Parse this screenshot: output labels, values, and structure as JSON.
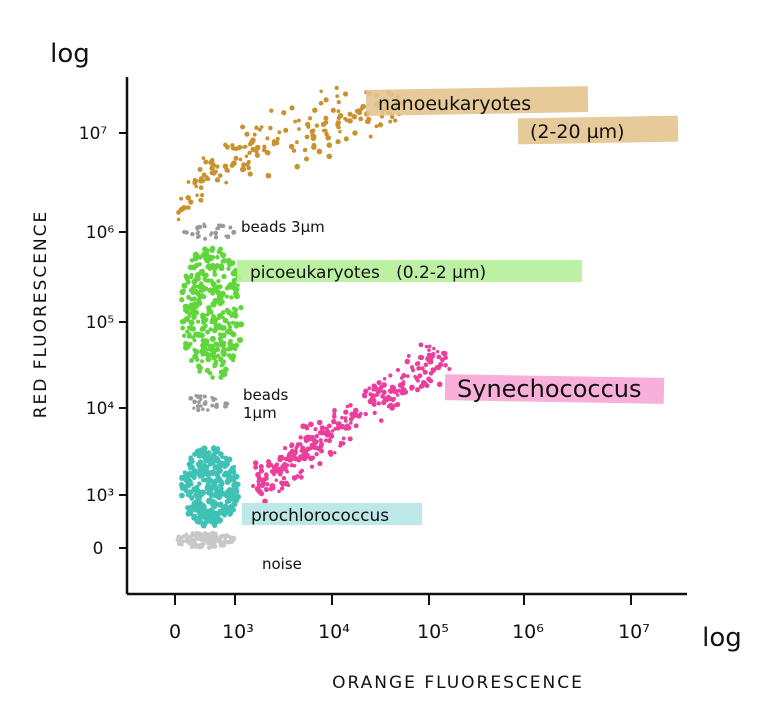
{
  "chart_data": {
    "type": "scatter",
    "title": "",
    "xlabel": "ORANGE FLUORESCENCE",
    "ylabel": "RED FLUORESCENCE",
    "x_scale_label": "log",
    "y_scale_label": "log",
    "x_ticks": [
      {
        "label": "0",
        "value": 0
      },
      {
        "label": "10³",
        "value": 1000
      },
      {
        "label": "10⁴",
        "value": 10000
      },
      {
        "label": "10⁵",
        "value": 100000
      },
      {
        "label": "10⁶",
        "value": 1000000
      },
      {
        "label": "10⁷",
        "value": 10000000
      }
    ],
    "y_ticks": [
      {
        "label": "0",
        "value": 0
      },
      {
        "label": "10³",
        "value": 1000
      },
      {
        "label": "10⁴",
        "value": 10000
      },
      {
        "label": "10⁵",
        "value": 100000
      },
      {
        "label": "10⁶",
        "value": 1000000
      },
      {
        "label": "10⁷",
        "value": 10000000
      }
    ],
    "populations": [
      {
        "name": "nanoeukaryotes",
        "label": "nanoeukaryotes",
        "label2": "(2-20 µm)",
        "color": "#c9922e",
        "highlight": "#e3c48e",
        "x_range": [
          100,
          50000
        ],
        "y_range": [
          1500000,
          25000000
        ]
      },
      {
        "name": "beads 3µm",
        "label": "beads 3µm",
        "color": "#9a9a9a",
        "x_range": [
          100,
          1000
        ],
        "y_range": [
          800000,
          1200000
        ]
      },
      {
        "name": "picoeukaryotes",
        "label": "picoeukaryotes   (0.2-2 µm)",
        "color": "#5fd63a",
        "highlight": "#b5f09a",
        "x_range": [
          100,
          1200
        ],
        "y_range": [
          20000,
          700000
        ]
      },
      {
        "name": "beads 1µm",
        "label": "beads",
        "label2": "1µm",
        "color": "#9a9a9a",
        "x_range": [
          200,
          900
        ],
        "y_range": [
          9000,
          14000
        ]
      },
      {
        "name": "Synechococcus",
        "label": "Synechococcus",
        "color": "#ea3f9b",
        "highlight": "#f7a6d6",
        "x_range": [
          1500,
          150000
        ],
        "y_range": [
          1200,
          40000
        ]
      },
      {
        "name": "prochlorococcus",
        "label": "prochlorococcus",
        "color": "#3fc2b5",
        "highlight": "#b5e6e4",
        "x_range": [
          100,
          1100
        ],
        "y_range": [
          400,
          3500
        ]
      },
      {
        "name": "noise",
        "label": "noise",
        "color": "#c8c8c8",
        "x_range": [
          0,
          1000
        ],
        "y_range": [
          0,
          300
        ]
      }
    ],
    "grid": false,
    "legend": "inline labels"
  }
}
